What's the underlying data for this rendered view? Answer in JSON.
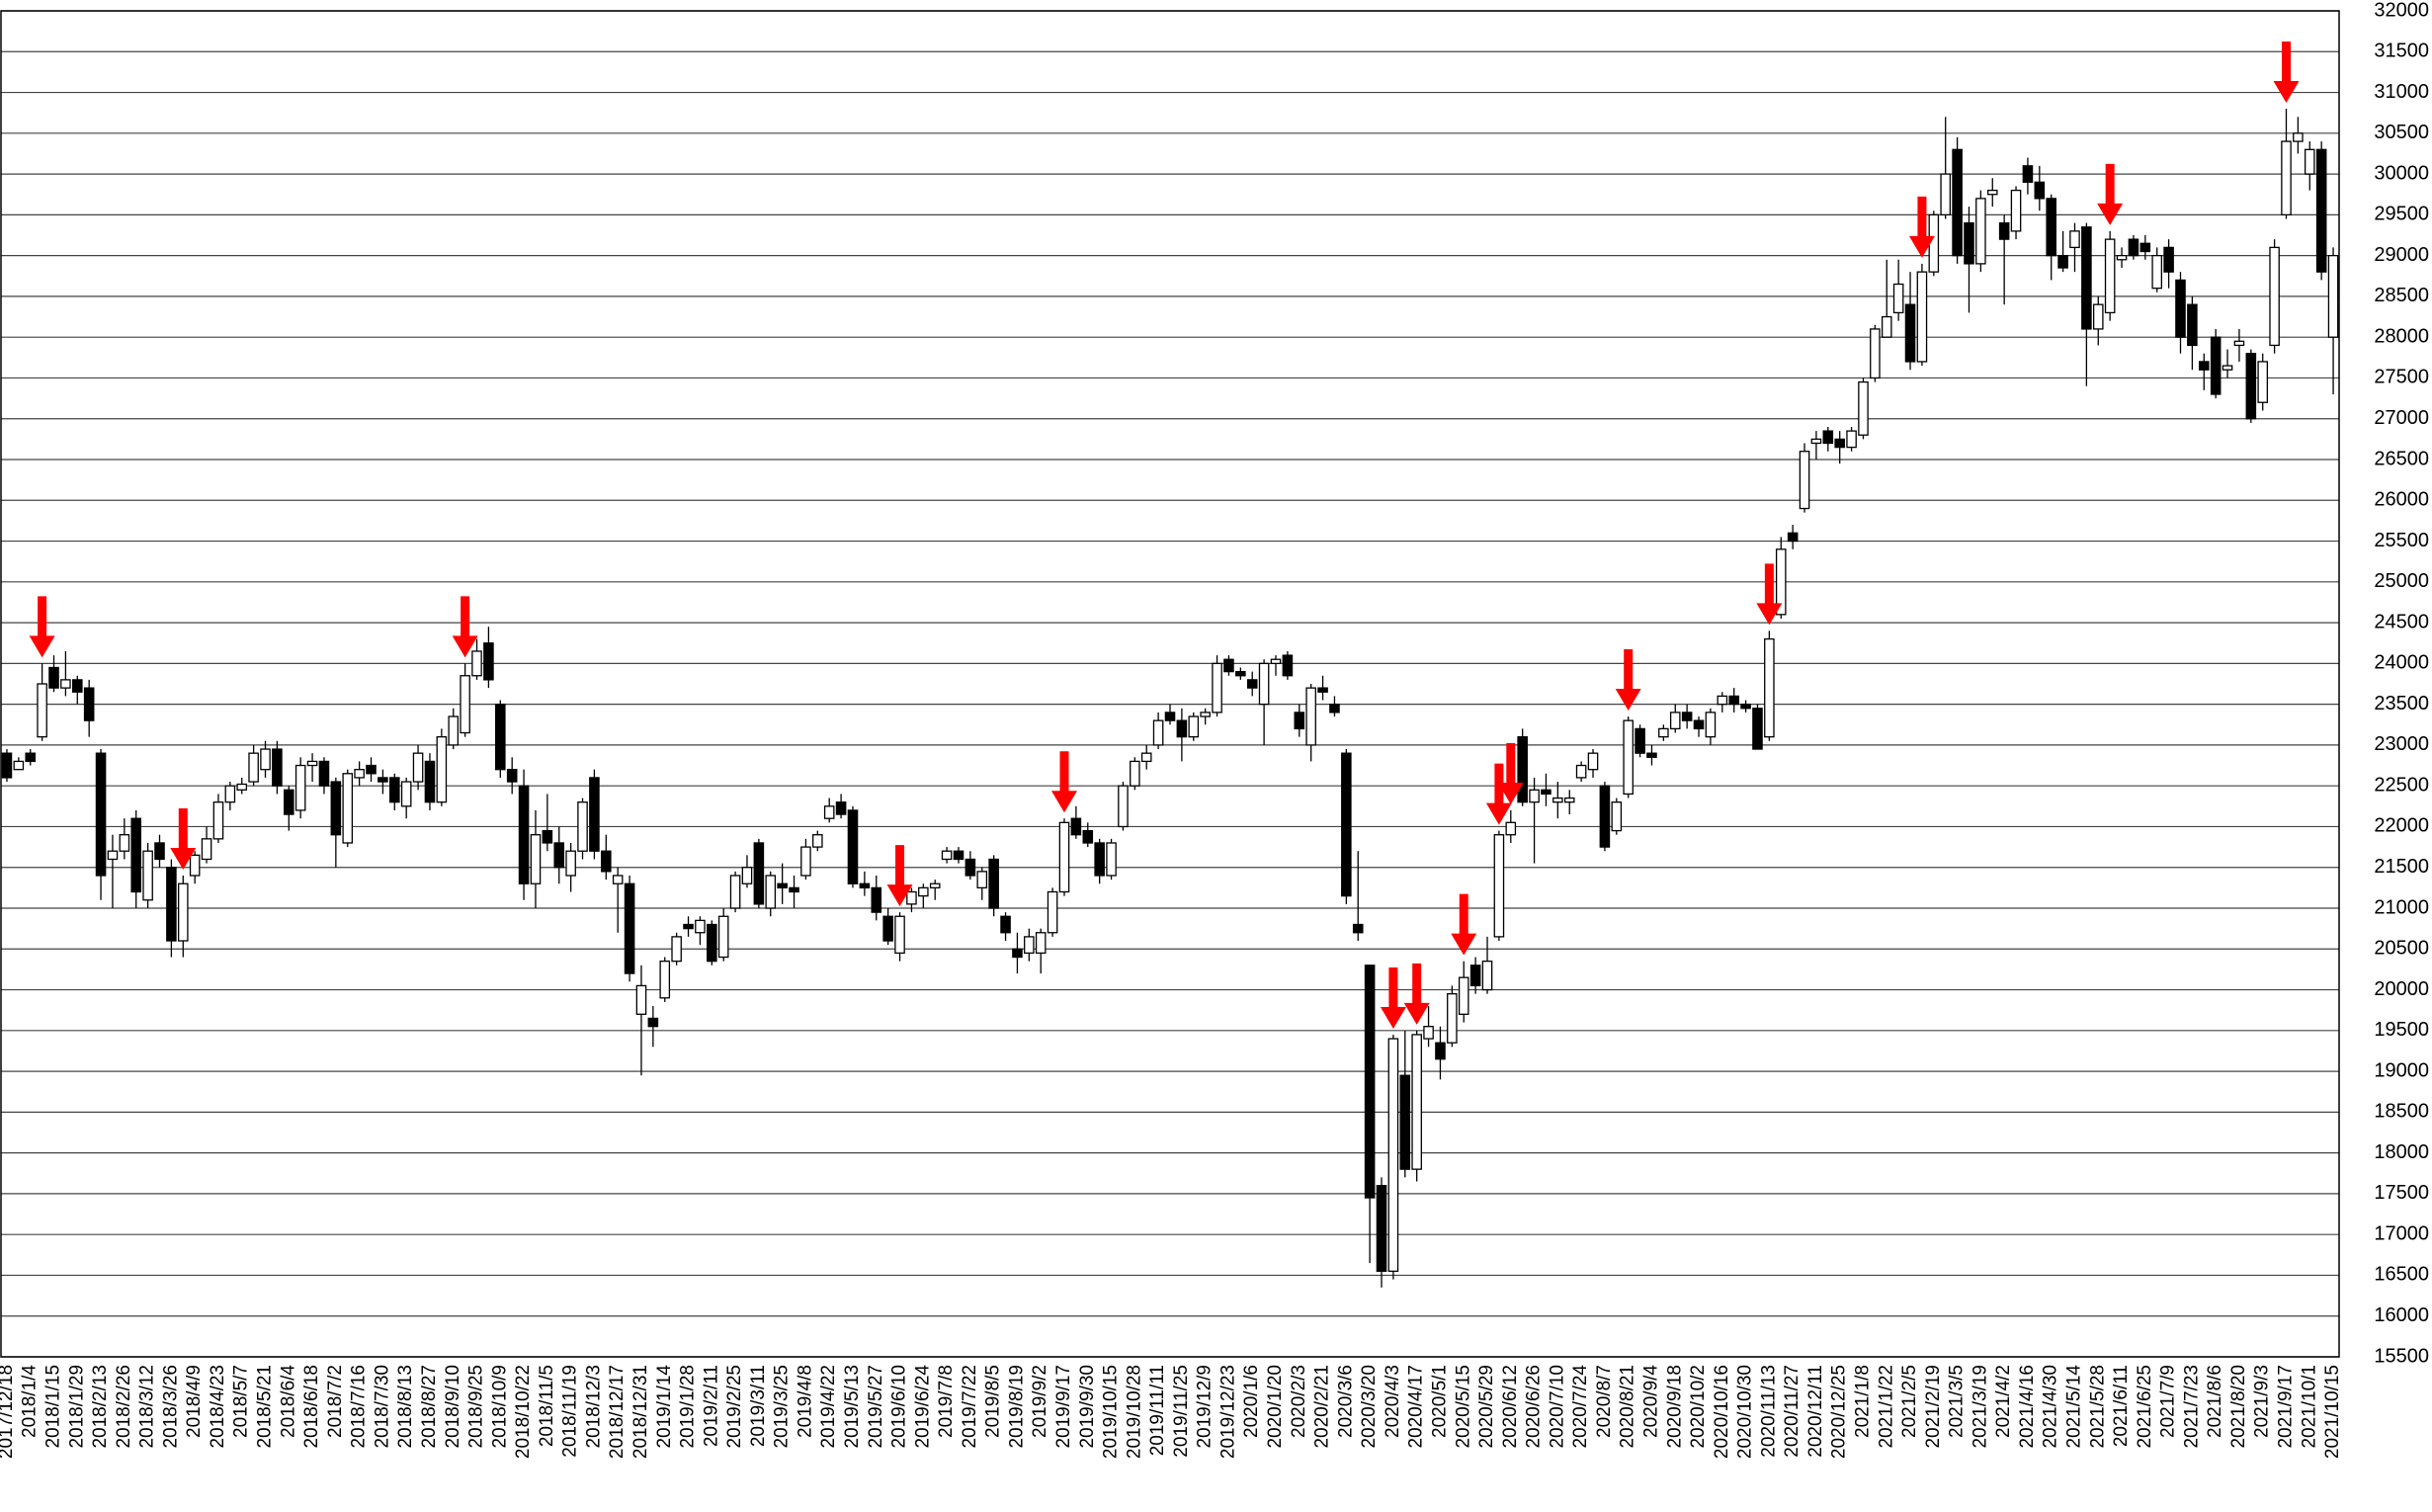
{
  "chart_data": {
    "type": "candlestick",
    "categories": [
      "2017/12/18",
      null,
      "2018/1/4",
      null,
      "2018/1/15",
      null,
      "2018/1/29",
      null,
      "2018/2/13",
      null,
      "2018/2/26",
      null,
      "2018/3/12",
      null,
      "2018/3/26",
      null,
      "2018/4/9",
      null,
      "2018/4/23",
      null,
      "2018/5/7",
      null,
      "2018/5/21",
      null,
      "2018/6/4",
      null,
      "2018/6/18",
      null,
      "2018/7/2",
      null,
      "2018/7/16",
      null,
      "2018/7/30",
      null,
      "2018/8/13",
      null,
      "2018/8/27",
      null,
      "2018/9/10",
      null,
      "2018/9/25",
      null,
      "2018/10/9",
      null,
      "2018/10/22",
      null,
      "2018/11/5",
      null,
      "2018/11/19",
      null,
      "2018/12/3",
      null,
      "2018/12/17",
      null,
      "2018/12/31",
      null,
      "2019/1/14",
      null,
      "2019/1/28",
      null,
      "2019/2/11",
      null,
      "2019/2/25",
      null,
      "2019/3/11",
      null,
      "2019/3/25",
      null,
      "2019/4/8",
      null,
      "2019/4/22",
      null,
      "2019/5/13",
      null,
      "2019/5/27",
      null,
      "2019/6/10",
      null,
      "2019/6/24",
      null,
      "2019/7/8",
      null,
      "2019/7/22",
      null,
      "2019/8/5",
      null,
      "2019/8/19",
      null,
      "2019/9/2",
      null,
      "2019/9/17",
      null,
      "2019/9/30",
      null,
      "2019/10/15",
      null,
      "2019/10/28",
      null,
      "2019/11/11",
      null,
      "2019/11/25",
      null,
      "2019/12/9",
      null,
      "2019/12/23",
      null,
      "2020/1/6",
      null,
      "2020/1/20",
      null,
      "2020/2/3",
      null,
      "2020/2/21",
      null,
      "2020/3/6",
      null,
      "2020/3/20",
      null,
      "2020/4/3",
      null,
      "2020/4/17",
      null,
      "2020/5/1",
      null,
      "2020/5/15",
      null,
      "2020/5/29",
      null,
      "2020/6/12",
      null,
      "2020/6/26",
      null,
      "2020/7/10",
      null,
      "2020/7/24",
      null,
      "2020/8/7",
      null,
      "2020/8/21",
      null,
      "2020/9/4",
      null,
      "2020/9/18",
      null,
      "2020/10/2",
      null,
      "2020/10/16",
      null,
      "2020/10/30",
      null,
      "2020/11/13",
      null,
      "2020/11/27",
      null,
      "2020/12/11",
      null,
      "2020/12/25",
      null,
      "2021/1/8",
      null,
      "2021/1/22",
      null,
      "2021/2/5",
      null,
      "2021/2/19",
      null,
      "2021/3/5",
      null,
      "2021/3/19",
      null,
      "2021/4/2",
      null,
      "2021/4/16",
      null,
      "2021/4/30",
      null,
      "2021/5/14",
      null,
      "2021/5/28",
      null,
      "2021/6/11",
      null,
      "2021/6/25",
      null,
      "2021/7/9",
      null,
      "2021/7/23",
      null,
      "2021/8/6",
      null,
      "2021/8/20",
      null,
      "2021/9/3",
      null,
      "2021/9/17",
      null,
      "2021/10/1",
      null,
      "2021/10/15"
    ],
    "open": [
      22900,
      22700,
      22900,
      23100,
      23950,
      23700,
      23800,
      23700,
      22900,
      21600,
      21700,
      22100,
      21100,
      21800,
      21500,
      20600,
      21400,
      21600,
      21850,
      22300,
      22450,
      22550,
      22700,
      22950,
      22450,
      22200,
      22750,
      22800,
      22550,
      21800,
      22600,
      22750,
      22600,
      22600,
      22250,
      22550,
      22800,
      22300,
      23000,
      23150,
      23850,
      24250,
      23500,
      22700,
      22500,
      21300,
      21950,
      21800,
      21400,
      21700,
      22600,
      21700,
      21300,
      21300,
      19700,
      19650,
      19900,
      20350,
      20800,
      20700,
      20800,
      20400,
      21000,
      21300,
      21800,
      21000,
      21300,
      21250,
      21400,
      21750,
      22100,
      22300,
      22200,
      21300,
      21250,
      20900,
      20450,
      21050,
      21150,
      21250,
      21600,
      21700,
      21600,
      21250,
      21600,
      20900,
      20500,
      20450,
      20450,
      20700,
      21200,
      22100,
      21950,
      21800,
      21400,
      22000,
      22500,
      22800,
      23000,
      23400,
      23300,
      23100,
      23350,
      23400,
      24050,
      23900,
      23800,
      23500,
      24000,
      24100,
      23400,
      23000,
      23700,
      23500,
      22900,
      20800,
      20300,
      17600,
      16550,
      18950,
      17800,
      19400,
      19350,
      19350,
      19700,
      20300,
      20000,
      20650,
      21900,
      23100,
      22300,
      22450,
      22300,
      22300,
      22600,
      22700,
      22500,
      21950,
      22400,
      23200,
      22900,
      23100,
      23200,
      23400,
      23300,
      23100,
      23500,
      23600,
      23500,
      23450,
      23100,
      24600,
      25600,
      25900,
      26700,
      26850,
      26750,
      26650,
      26800,
      27500,
      28000,
      28300,
      28400,
      27700,
      28800,
      29500,
      30300,
      29400,
      28900,
      29750,
      29400,
      29300,
      30100,
      29900,
      29700,
      29000,
      29100,
      29350,
      28100,
      28300,
      28950,
      29200,
      29150,
      28600,
      29100,
      28700,
      28400,
      27700,
      28000,
      27600,
      27900,
      27800,
      27200,
      27900,
      29500,
      30400,
      30000,
      30300,
      28000
    ],
    "high": [
      22950,
      22850,
      22950,
      24000,
      24100,
      24150,
      23850,
      23800,
      22950,
      21900,
      22100,
      22200,
      21800,
      21900,
      21600,
      21400,
      21700,
      22000,
      22400,
      22550,
      22600,
      23000,
      23050,
      23050,
      22500,
      22850,
      22900,
      22850,
      22600,
      22700,
      22800,
      22850,
      22700,
      22650,
      22600,
      23000,
      22900,
      23200,
      23450,
      24000,
      24300,
      24450,
      23550,
      22850,
      22700,
      22200,
      22400,
      22000,
      21800,
      22350,
      22700,
      21900,
      21500,
      21400,
      20300,
      19800,
      20400,
      20700,
      20900,
      20900,
      20850,
      21000,
      21450,
      21650,
      21850,
      21450,
      21550,
      21400,
      21850,
      21950,
      22350,
      22400,
      22250,
      21450,
      21400,
      21000,
      20950,
      21250,
      21300,
      21350,
      21750,
      21750,
      21700,
      21500,
      21650,
      20950,
      20700,
      20750,
      20750,
      21250,
      22100,
      22250,
      22050,
      21850,
      21850,
      22550,
      22850,
      23000,
      23400,
      23500,
      23450,
      23400,
      23450,
      24100,
      24100,
      23950,
      23900,
      24050,
      24100,
      24150,
      23500,
      23750,
      23850,
      23600,
      22950,
      21700,
      20300,
      17700,
      19450,
      19500,
      19500,
      19800,
      19550,
      20050,
      20350,
      20400,
      20650,
      21950,
      22200,
      23200,
      22600,
      22650,
      22550,
      22450,
      22800,
      22950,
      22550,
      22350,
      23350,
      23250,
      23000,
      23250,
      23500,
      23500,
      23350,
      23450,
      23650,
      23700,
      23550,
      23500,
      24400,
      25550,
      25700,
      26700,
      26850,
      26900,
      26850,
      26900,
      27500,
      28150,
      28950,
      28950,
      28800,
      28900,
      29550,
      30700,
      30450,
      29600,
      29800,
      29950,
      29500,
      29850,
      30200,
      30100,
      29750,
      29300,
      29400,
      29400,
      28500,
      29300,
      29100,
      29250,
      29250,
      29100,
      29200,
      28800,
      28500,
      27800,
      28100,
      27850,
      28100,
      27850,
      27800,
      29200,
      30800,
      30700,
      30400,
      30400,
      29100
    ],
    "low": [
      22550,
      22700,
      22750,
      23050,
      23650,
      23600,
      23500,
      23100,
      21100,
      21000,
      21600,
      21000,
      21000,
      21500,
      20400,
      20400,
      21300,
      21550,
      21800,
      22200,
      22400,
      22500,
      22600,
      22400,
      21950,
      22100,
      22550,
      22400,
      21500,
      21750,
      22500,
      22550,
      22400,
      22200,
      22100,
      22450,
      22200,
      22250,
      22950,
      23100,
      23800,
      23700,
      22600,
      22400,
      21100,
      21000,
      21700,
      21300,
      21200,
      21600,
      21600,
      21350,
      20700,
      20100,
      18950,
      19300,
      19850,
      20300,
      20650,
      20550,
      20300,
      20350,
      20950,
      21250,
      21000,
      20900,
      21050,
      21000,
      21350,
      21700,
      22050,
      22100,
      21250,
      21150,
      20850,
      20550,
      20350,
      20950,
      21000,
      21100,
      21550,
      21550,
      21350,
      21100,
      20900,
      20600,
      20200,
      20350,
      20200,
      20650,
      21150,
      21850,
      21750,
      21300,
      21350,
      21950,
      22450,
      22700,
      22950,
      23250,
      22800,
      23050,
      23250,
      23350,
      23850,
      23800,
      23600,
      23000,
      23850,
      23800,
      23100,
      22800,
      23550,
      23350,
      21050,
      20600,
      16650,
      16350,
      16450,
      17700,
      17650,
      19300,
      18900,
      19300,
      19600,
      19950,
      19950,
      20600,
      21800,
      22250,
      21550,
      22250,
      22100,
      22150,
      22550,
      22600,
      21700,
      21900,
      22350,
      22850,
      22750,
      23050,
      23150,
      23200,
      23100,
      23000,
      23400,
      23400,
      23400,
      22950,
      23050,
      24550,
      25400,
      25850,
      26500,
      26600,
      26450,
      26600,
      26750,
      27450,
      28000,
      28200,
      27600,
      27650,
      28750,
      29450,
      28900,
      28300,
      28800,
      29600,
      28400,
      29200,
      29750,
      29550,
      28700,
      28800,
      28800,
      27400,
      27900,
      28200,
      28850,
      28950,
      28950,
      28550,
      28600,
      27800,
      27600,
      27350,
      27250,
      27500,
      27700,
      26950,
      27100,
      27800,
      29450,
      30250,
      29800,
      28700,
      27300
    ],
    "close": [
      22600,
      22800,
      22800,
      23750,
      23700,
      23800,
      23650,
      23300,
      21400,
      21700,
      21900,
      21200,
      21700,
      21600,
      20600,
      21300,
      21650,
      21850,
      22300,
      22500,
      22520,
      22900,
      22950,
      22500,
      22150,
      22750,
      22800,
      22500,
      21900,
      22650,
      22700,
      22650,
      22550,
      22300,
      22550,
      22900,
      22300,
      23100,
      23350,
      23850,
      24150,
      23800,
      22700,
      22550,
      21300,
      21900,
      21800,
      21500,
      21700,
      22300,
      21700,
      21450,
      21400,
      20200,
      20050,
      19550,
      20350,
      20650,
      20750,
      20850,
      20350,
      20900,
      21400,
      21500,
      21050,
      21400,
      21250,
      21200,
      21750,
      21900,
      22250,
      22150,
      21300,
      21250,
      20950,
      20600,
      20900,
      21200,
      21250,
      21300,
      21700,
      21600,
      21400,
      21450,
      21000,
      20700,
      20400,
      20650,
      20700,
      21200,
      22050,
      21900,
      21800,
      21400,
      21800,
      22500,
      22800,
      22900,
      23300,
      23300,
      23100,
      23350,
      23400,
      24000,
      23900,
      23850,
      23700,
      24000,
      24050,
      23850,
      23200,
      23700,
      23650,
      23400,
      21150,
      20700,
      17450,
      16550,
      19400,
      17800,
      19450,
      19550,
      19150,
      19950,
      20150,
      20050,
      20350,
      21900,
      22050,
      22300,
      22450,
      22400,
      22350,
      22350,
      22750,
      22900,
      21750,
      22300,
      23300,
      22900,
      22850,
      23200,
      23400,
      23300,
      23200,
      23400,
      23600,
      23500,
      23450,
      22950,
      24300,
      25400,
      25500,
      26600,
      26750,
      26700,
      26650,
      26850,
      27450,
      28100,
      28250,
      28650,
      27700,
      28800,
      29500,
      30000,
      29000,
      28900,
      29700,
      29800,
      29200,
      29800,
      29900,
      29700,
      29000,
      28850,
      29300,
      28100,
      28400,
      29200,
      29000,
      29000,
      29050,
      29000,
      28800,
      28000,
      27900,
      27600,
      27300,
      27650,
      27950,
      27000,
      27700,
      29100,
      30400,
      30500,
      30300,
      28800,
      29000
    ],
    "arrows": [
      3,
      15,
      39,
      76,
      90,
      118,
      120,
      124,
      127,
      128,
      138,
      150,
      163,
      179,
      194
    ],
    "up_color": "#ffffff",
    "down_color": "#000000",
    "arrow_color": "#ff0000",
    "ylim": [
      15500,
      32000
    ],
    "yticks": [
      15500,
      16000,
      16500,
      17000,
      17500,
      18000,
      18500,
      19000,
      19500,
      20000,
      20500,
      21000,
      21500,
      22000,
      22500,
      23000,
      23500,
      24000,
      24500,
      25000,
      25500,
      26000,
      26500,
      27000,
      27500,
      28000,
      28500,
      29000,
      29500,
      30000,
      30500,
      31000,
      31500,
      32000
    ],
    "grid": true
  }
}
